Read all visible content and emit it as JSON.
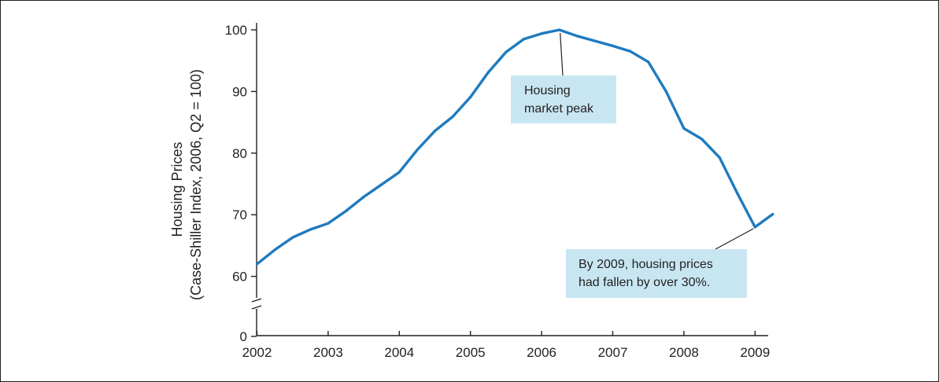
{
  "chart_data": {
    "type": "line",
    "title": "",
    "xlabel": "",
    "ylabel_lines": [
      "Housing Prices",
      "(Case-Shiller Index, 2006, Q2 = 100)"
    ],
    "x_ticks": [
      "2002",
      "2003",
      "2004",
      "2005",
      "2006",
      "2007",
      "2008",
      "2009"
    ],
    "y_ticks": [
      "0",
      "60",
      "70",
      "80",
      "90",
      "100"
    ],
    "xlim": [
      2002,
      2009.3
    ],
    "ylim_broken": [
      58,
      101
    ],
    "axis_break": true,
    "grid": false,
    "line_color": "#1f7bbf",
    "annotation_color": "#c8e6f2",
    "series": [
      {
        "x": [
          2002,
          2002.25,
          2002.5,
          2002.75,
          2003,
          2003.25,
          2003.5,
          2003.75,
          2004,
          2004.25,
          2004.5,
          2004.75,
          2005,
          2005.25,
          2005.5,
          2005.75,
          2006,
          2006.25,
          2006.5,
          2006.75,
          2007,
          2007.25,
          2007.5,
          2007.75,
          2008,
          2008.25,
          2008.5,
          2008.75,
          2009,
          2009.25
        ],
        "y": [
          62.0,
          64.3,
          66.3,
          67.6,
          68.6,
          70.6,
          72.9,
          74.9,
          76.9,
          80.5,
          83.6,
          85.9,
          89.1,
          93.1,
          96.4,
          98.5,
          99.4,
          100.0,
          99.0,
          98.2,
          97.4,
          96.5,
          94.8,
          90.0,
          84.0,
          82.3,
          79.3,
          73.5,
          68.0,
          70.1
        ]
      }
    ],
    "annotations": [
      {
        "lines": [
          "Housing",
          "market peak"
        ],
        "points_to": {
          "x": 2006.25,
          "y": 100.0
        }
      },
      {
        "lines": [
          "By 2009, housing prices",
          "had fallen by over 30%."
        ],
        "points_to": {
          "x": 2009.0,
          "y": 68.0
        }
      }
    ]
  }
}
